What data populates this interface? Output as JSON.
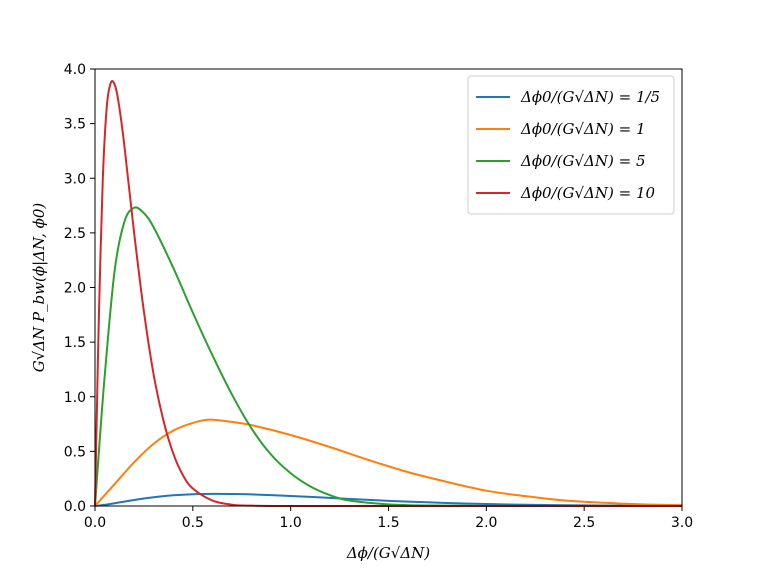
{
  "chart_data": {
    "type": "line",
    "xlabel": "Δϕ/(G√ΔN)",
    "ylabel": "G√ΔN P_bw(ϕ|ΔN, ϕ0)",
    "xlim": [
      0.0,
      3.0
    ],
    "ylim": [
      0.0,
      4.0
    ],
    "xticks": [
      "0.0",
      "0.5",
      "1.0",
      "1.5",
      "2.0",
      "2.5",
      "3.0"
    ],
    "yticks": [
      "0.0",
      "0.5",
      "1.0",
      "1.5",
      "2.0",
      "2.5",
      "3.0",
      "3.5",
      "4.0"
    ],
    "grid": false,
    "legend_position": "top-right",
    "series": [
      {
        "name": "Δϕ0/(G√ΔN) = 1/5",
        "color": "#1f77b4",
        "x": [
          0,
          0.05,
          0.1,
          0.2,
          0.3,
          0.4,
          0.5,
          0.6,
          0.7,
          0.8,
          1.0,
          1.2,
          1.4,
          1.6,
          1.8,
          2.0,
          2.2,
          2.4,
          2.6,
          2.8,
          3.0
        ],
        "y": [
          0,
          0.01,
          0.025,
          0.055,
          0.08,
          0.098,
          0.108,
          0.111,
          0.11,
          0.106,
          0.092,
          0.074,
          0.056,
          0.04,
          0.028,
          0.018,
          0.011,
          0.007,
          0.004,
          0.002,
          0.001
        ]
      },
      {
        "name": "Δϕ0/(G√ΔN) = 1",
        "color": "#ff7f0e",
        "x": [
          0,
          0.05,
          0.1,
          0.2,
          0.3,
          0.4,
          0.5,
          0.58,
          0.7,
          0.8,
          1.0,
          1.2,
          1.4,
          1.6,
          1.8,
          2.0,
          2.2,
          2.4,
          2.6,
          2.8,
          3.0
        ],
        "y": [
          0,
          0.1,
          0.2,
          0.4,
          0.57,
          0.69,
          0.76,
          0.79,
          0.77,
          0.74,
          0.65,
          0.54,
          0.42,
          0.31,
          0.22,
          0.14,
          0.09,
          0.05,
          0.03,
          0.015,
          0.008
        ]
      },
      {
        "name": "Δϕ0/(G√ΔN) = 5",
        "color": "#2ca02c",
        "x": [
          0,
          0.02,
          0.05,
          0.1,
          0.15,
          0.2,
          0.25,
          0.3,
          0.4,
          0.5,
          0.6,
          0.7,
          0.8,
          0.9,
          1.0,
          1.1,
          1.2,
          1.3,
          1.5,
          1.7,
          2.0,
          2.5,
          3.0
        ],
        "y": [
          0,
          0.5,
          1.2,
          2.15,
          2.6,
          2.73,
          2.68,
          2.55,
          2.18,
          1.77,
          1.38,
          1.02,
          0.71,
          0.47,
          0.3,
          0.18,
          0.1,
          0.05,
          0.015,
          0.004,
          0.001,
          0,
          0
        ]
      },
      {
        "name": "Δϕ0/(G√ΔN) = 10",
        "color": "#d62728",
        "x": [
          0,
          0.01,
          0.02,
          0.04,
          0.06,
          0.08,
          0.1,
          0.12,
          0.15,
          0.2,
          0.25,
          0.3,
          0.35,
          0.4,
          0.45,
          0.5,
          0.6,
          0.7,
          0.8,
          1.0,
          1.5,
          2.0,
          3.0
        ],
        "y": [
          0,
          0.9,
          1.75,
          3.0,
          3.65,
          3.87,
          3.86,
          3.7,
          3.3,
          2.5,
          1.78,
          1.2,
          0.78,
          0.48,
          0.28,
          0.16,
          0.05,
          0.012,
          0.003,
          0,
          0,
          0,
          0
        ]
      }
    ]
  }
}
